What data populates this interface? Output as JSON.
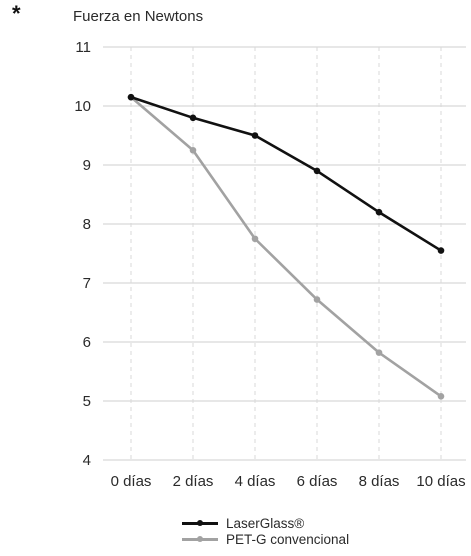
{
  "annotation": "*",
  "chart_data": {
    "type": "line",
    "ylabel": "Fuerza en Newtons",
    "xlabel": "",
    "categories": [
      "0 días",
      "2 días",
      "4 días",
      "6 días",
      "8 días",
      "10 días"
    ],
    "ylim": [
      4,
      11
    ],
    "yticks": [
      4,
      5,
      6,
      7,
      8,
      9,
      10,
      11
    ],
    "series": [
      {
        "name": "LaserGlass®",
        "color": "#111111",
        "values": [
          10.15,
          9.8,
          9.5,
          8.9,
          8.2,
          7.55
        ]
      },
      {
        "name": "PET-G convencional",
        "color": "#a2a2a2",
        "values": [
          10.15,
          9.25,
          7.75,
          6.72,
          5.82,
          5.08
        ]
      }
    ],
    "grid": {
      "horizontal": "solid",
      "vertical": "dashed"
    },
    "legend_position": "bottom"
  }
}
